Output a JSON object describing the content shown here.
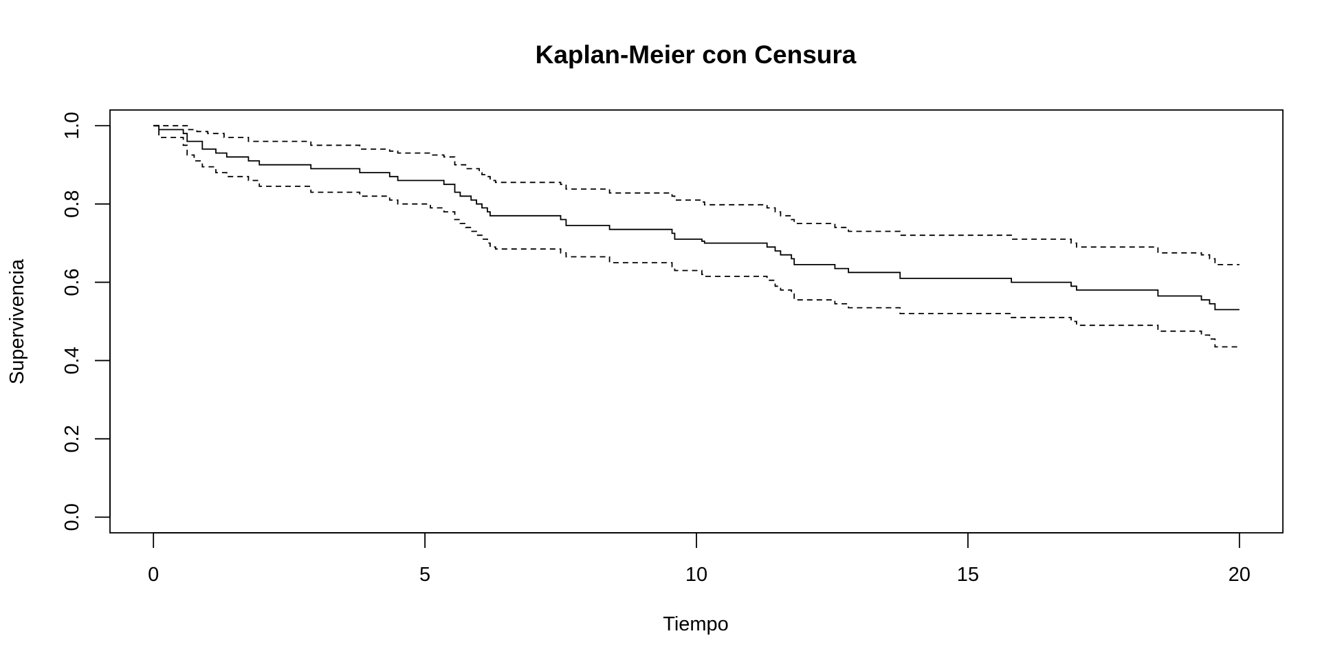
{
  "chart_data": {
    "type": "line",
    "title": "Kaplan-Meier con Censura",
    "xlabel": "Tiempo",
    "ylabel": "Supervivencia",
    "xlim": [
      -0.8,
      20.8
    ],
    "ylim": [
      -0.04,
      1.04
    ],
    "xticks": [
      0,
      5,
      10,
      15,
      20
    ],
    "xtick_labels": [
      "0",
      "5",
      "10",
      "15",
      "20"
    ],
    "yticks": [
      0.0,
      0.2,
      0.4,
      0.6,
      0.8,
      1.0
    ],
    "ytick_labels": [
      "0.0",
      "0.2",
      "0.4",
      "0.6",
      "0.8",
      "1.0"
    ],
    "grid": false,
    "legend": "none",
    "series": [
      {
        "style": "solid",
        "x": [
          0,
          0.1,
          0.55,
          0.62,
          0.75,
          0.9,
          1.15,
          1.35,
          1.75,
          1.95,
          2.9,
          3.8,
          4.35,
          4.5,
          5.1,
          5.35,
          5.55,
          5.65,
          5.75,
          5.85,
          5.95,
          6.05,
          6.15,
          6.2,
          6.3,
          7.5,
          7.6,
          8.4,
          8.5,
          9.55,
          9.6,
          10.1,
          10.15,
          11.3,
          11.45,
          11.55,
          11.75,
          11.8,
          12.55,
          12.8,
          13.75,
          15.8,
          16.9,
          17.0,
          18.5,
          19.3,
          19.45,
          19.55,
          20.0
        ],
        "y": [
          1.0,
          0.99,
          0.98,
          0.96,
          0.96,
          0.94,
          0.93,
          0.92,
          0.91,
          0.9,
          0.89,
          0.88,
          0.87,
          0.86,
          0.86,
          0.85,
          0.83,
          0.82,
          0.82,
          0.81,
          0.8,
          0.79,
          0.78,
          0.77,
          0.77,
          0.76,
          0.745,
          0.735,
          0.735,
          0.725,
          0.71,
          0.705,
          0.7,
          0.69,
          0.68,
          0.67,
          0.66,
          0.645,
          0.635,
          0.625,
          0.61,
          0.6,
          0.59,
          0.58,
          0.565,
          0.555,
          0.545,
          0.53,
          0.53
        ]
      },
      {
        "style": "dashed",
        "x": [
          0,
          0.65,
          0.8,
          1.0,
          1.3,
          1.75,
          2.9,
          3.8,
          4.35,
          4.5,
          5.1,
          5.35,
          5.55,
          5.75,
          6.0,
          6.05,
          6.15,
          6.2,
          6.3,
          7.5,
          7.6,
          8.4,
          9.55,
          9.6,
          10.1,
          10.15,
          11.3,
          11.45,
          11.55,
          11.75,
          11.8,
          12.55,
          12.8,
          13.75,
          15.8,
          16.9,
          17.0,
          18.5,
          19.3,
          19.45,
          19.55,
          20.0
        ],
        "y": [
          1.0,
          0.99,
          0.985,
          0.98,
          0.97,
          0.96,
          0.95,
          0.94,
          0.935,
          0.93,
          0.925,
          0.92,
          0.9,
          0.89,
          0.88,
          0.875,
          0.87,
          0.86,
          0.855,
          0.85,
          0.838,
          0.828,
          0.82,
          0.81,
          0.805,
          0.798,
          0.79,
          0.78,
          0.77,
          0.76,
          0.75,
          0.74,
          0.73,
          0.72,
          0.71,
          0.7,
          0.69,
          0.675,
          0.67,
          0.66,
          0.645,
          0.645
        ]
      },
      {
        "style": "dashed",
        "x": [
          0,
          0.1,
          0.55,
          0.62,
          0.75,
          0.9,
          1.15,
          1.35,
          1.75,
          1.95,
          2.9,
          3.8,
          4.35,
          4.5,
          5.1,
          5.35,
          5.55,
          5.65,
          5.75,
          5.85,
          5.95,
          6.05,
          6.15,
          6.2,
          6.3,
          7.5,
          7.6,
          8.4,
          9.55,
          9.6,
          10.1,
          10.15,
          11.3,
          11.45,
          11.55,
          11.75,
          11.8,
          12.55,
          12.8,
          13.75,
          15.8,
          16.9,
          17.0,
          18.5,
          19.3,
          19.45,
          19.55,
          20.0
        ],
        "y": [
          1.0,
          0.97,
          0.95,
          0.925,
          0.91,
          0.895,
          0.88,
          0.87,
          0.86,
          0.845,
          0.83,
          0.82,
          0.81,
          0.8,
          0.79,
          0.78,
          0.76,
          0.75,
          0.74,
          0.73,
          0.72,
          0.71,
          0.7,
          0.69,
          0.685,
          0.675,
          0.665,
          0.65,
          0.64,
          0.63,
          0.62,
          0.615,
          0.605,
          0.59,
          0.58,
          0.57,
          0.555,
          0.545,
          0.535,
          0.52,
          0.51,
          0.5,
          0.49,
          0.475,
          0.465,
          0.455,
          0.435,
          0.435
        ]
      }
    ]
  }
}
